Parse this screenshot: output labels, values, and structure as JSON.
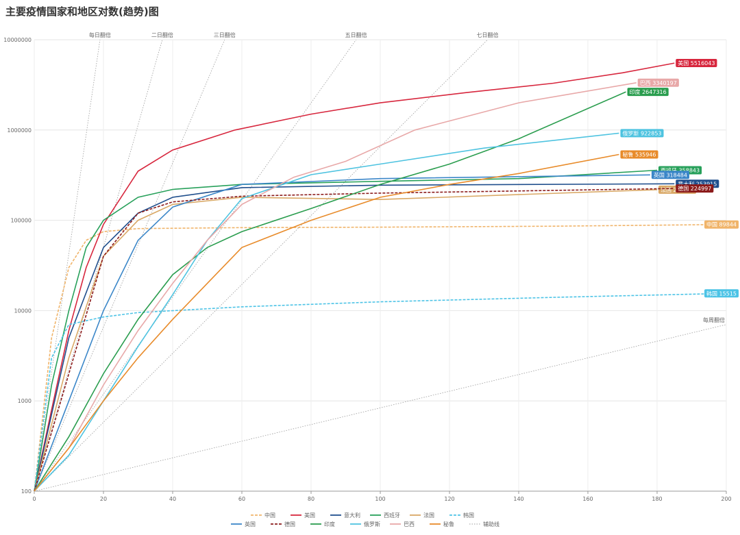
{
  "chart_data": {
    "type": "line",
    "title": "主要疫情国家和地区对数(趋势)图",
    "log_scale": true,
    "grid": true,
    "xlim": [
      0,
      200
    ],
    "xticks": [
      0,
      20,
      40,
      60,
      80,
      100,
      120,
      140,
      160,
      180,
      200
    ],
    "ylim": [
      100,
      10000000
    ],
    "yticks": [
      100,
      1000,
      10000,
      100000,
      1000000,
      10000000
    ],
    "series": [
      {
        "name": "中国",
        "color": "#f0b46a",
        "dash": true,
        "x": [
          0,
          5,
          10,
          15,
          20,
          30,
          60,
          100,
          150,
          200
        ],
        "values": [
          100,
          5000,
          30000,
          60000,
          75000,
          81000,
          83000,
          84000,
          86000,
          89844
        ]
      },
      {
        "name": "美国",
        "color": "#d7263d",
        "dash": false,
        "x": [
          0,
          5,
          10,
          15,
          20,
          30,
          40,
          58,
          80,
          100,
          125,
          150,
          170,
          185
        ],
        "values": [
          100,
          800,
          6000,
          30000,
          90000,
          350000,
          600000,
          1000000,
          1500000,
          2000000,
          2600000,
          3300000,
          4300000,
          5516043
        ]
      },
      {
        "name": "意大利",
        "color": "#1f4e8c",
        "dash": false,
        "x": [
          0,
          10,
          20,
          30,
          40,
          60,
          100,
          185
        ],
        "values": [
          100,
          5000,
          50000,
          120000,
          180000,
          230000,
          245000,
          253915
        ]
      },
      {
        "name": "西班牙",
        "color": "#27a05a",
        "dash": false,
        "x": [
          0,
          5,
          10,
          15,
          20,
          30,
          40,
          60,
          100,
          140,
          180
        ],
        "values": [
          100,
          1500,
          10000,
          50000,
          100000,
          180000,
          220000,
          250000,
          270000,
          290000,
          358843
        ]
      },
      {
        "name": "法国",
        "color": "#d9a865",
        "dash": false,
        "x": [
          0,
          10,
          20,
          30,
          40,
          60,
          100,
          180
        ],
        "values": [
          100,
          3000,
          40000,
          100000,
          150000,
          180000,
          170000,
          218536
        ]
      },
      {
        "name": "韩国",
        "color": "#4cc3e6",
        "dash": true,
        "x": [
          0,
          5,
          10,
          20,
          30,
          60,
          100,
          150,
          200
        ],
        "values": [
          100,
          3000,
          7000,
          8500,
          9500,
          11000,
          12500,
          14000,
          15515
        ]
      },
      {
        "name": "英国",
        "color": "#3a86c8",
        "dash": false,
        "x": [
          0,
          10,
          20,
          30,
          40,
          60,
          100,
          178
        ],
        "values": [
          100,
          1000,
          10000,
          60000,
          140000,
          250000,
          290000,
          318484
        ]
      },
      {
        "name": "德国",
        "color": "#8b1a1a",
        "dash": true,
        "x": [
          0,
          10,
          20,
          30,
          40,
          60,
          100,
          185
        ],
        "values": [
          100,
          2000,
          40000,
          120000,
          160000,
          185000,
          200000,
          224997
        ]
      },
      {
        "name": "印度",
        "color": "#2a9d4e",
        "dash": false,
        "x": [
          0,
          10,
          20,
          30,
          40,
          50,
          60,
          80,
          100,
          120,
          140,
          171
        ],
        "values": [
          100,
          400,
          2000,
          8000,
          25000,
          50000,
          75000,
          135000,
          250000,
          420000,
          800000,
          2647316
        ]
      },
      {
        "name": "俄罗斯",
        "color": "#4ec3e0",
        "dash": false,
        "x": [
          0,
          10,
          20,
          30,
          40,
          50,
          60,
          80,
          100,
          130,
          169
        ],
        "values": [
          100,
          250,
          1000,
          4000,
          15000,
          60000,
          174000,
          320000,
          420000,
          630000,
          922853
        ]
      },
      {
        "name": "巴西",
        "color": "#e8a8a8",
        "dash": false,
        "x": [
          0,
          10,
          20,
          30,
          40,
          50,
          60,
          75,
          90,
          110,
          140,
          174
        ],
        "values": [
          100,
          300,
          1500,
          6000,
          20000,
          60000,
          150000,
          300000,
          450000,
          1000000,
          2000000,
          3340197
        ]
      },
      {
        "name": "秘鲁",
        "color": "#e88b2a",
        "dash": false,
        "x": [
          0,
          10,
          20,
          30,
          40,
          50,
          60,
          80,
          100,
          120,
          140,
          169
        ],
        "values": [
          100,
          300,
          1000,
          3000,
          8000,
          20000,
          50000,
          100000,
          180000,
          250000,
          330000,
          535946
        ]
      }
    ],
    "guide_legend": "辅助线",
    "guides": [
      {
        "name": "每日翻倍",
        "x": [
          0,
          19
        ],
        "values": [
          100,
          10000000
        ]
      },
      {
        "name": "二日翻倍",
        "x": [
          0,
          37
        ],
        "values": [
          100,
          10000000
        ]
      },
      {
        "name": "三日翻倍",
        "x": [
          0,
          55
        ],
        "values": [
          100,
          10000000
        ]
      },
      {
        "name": "五日翻倍",
        "x": [
          0,
          93
        ],
        "values": [
          100,
          10000000
        ]
      },
      {
        "name": "七日翻倍",
        "x": [
          0,
          131
        ],
        "values": [
          100,
          10000000
        ]
      },
      {
        "name": "每周翻倍",
        "x": [
          0,
          200
        ],
        "values": [
          100,
          7000
        ]
      }
    ]
  }
}
